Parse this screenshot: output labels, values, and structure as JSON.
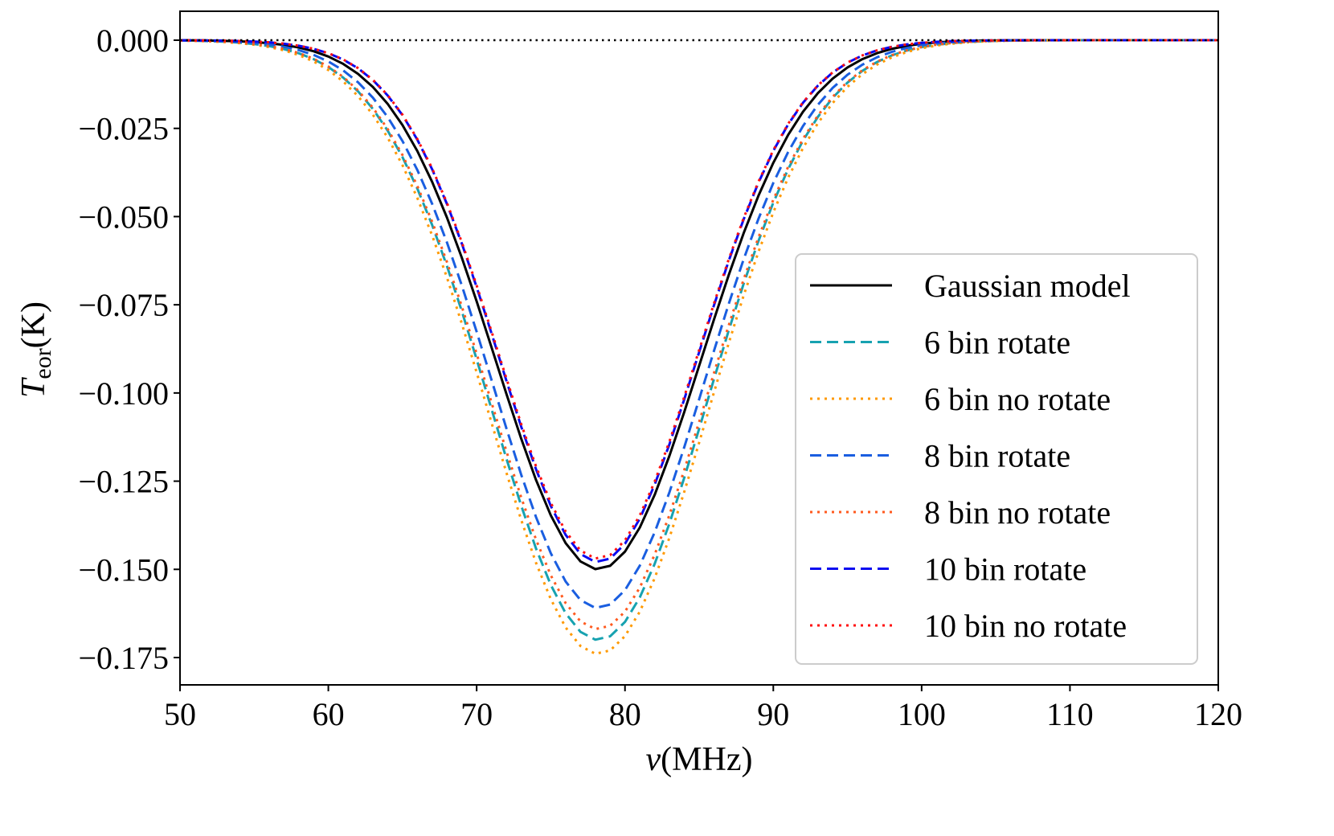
{
  "chart_data": {
    "type": "line",
    "title": "",
    "xlabel": "ν(MHz)",
    "ylabel_main": "T",
    "ylabel_sub": "eor",
    "ylabel_unit": "(K)",
    "xlim": [
      50,
      120
    ],
    "ylim": [
      -0.1825,
      0.0085
    ],
    "xticks": [
      50,
      60,
      70,
      80,
      90,
      100,
      110,
      120
    ],
    "xtick_labels": [
      "50",
      "60",
      "70",
      "80",
      "90",
      "100",
      "110",
      "120"
    ],
    "yticks": [
      0.0,
      -0.025,
      -0.05,
      -0.075,
      -0.1,
      -0.125,
      -0.15,
      -0.175
    ],
    "ytick_labels": [
      "0.000",
      "−0.025",
      "−0.050",
      "−0.075",
      "−0.100",
      "−0.125",
      "−0.150",
      "−0.175"
    ],
    "grid": false,
    "legend_position": "center-right",
    "reference_line": {
      "y": 0.0,
      "style": "dotted",
      "color": "#000000"
    },
    "x_sampling": {
      "start": 50,
      "stop": 120,
      "step": 1
    },
    "series": [
      {
        "name": "Gaussian model",
        "style": "solid",
        "color": "#000000",
        "center": 78.2,
        "amplitude": -0.15,
        "sigma": 6.9
      },
      {
        "name": "6 bin rotate",
        "style": "dashed",
        "color": "#17a2b0",
        "center": 78.2,
        "amplitude": -0.17,
        "sigma": 7.3
      },
      {
        "name": "6 bin no rotate",
        "style": "dotted",
        "color": "#ff9900",
        "center": 78.2,
        "amplitude": -0.174,
        "sigma": 7.4
      },
      {
        "name": "8 bin rotate",
        "style": "dashed",
        "color": "#1a5ee0",
        "center": 78.2,
        "amplitude": -0.161,
        "sigma": 7.1
      },
      {
        "name": "8 bin no rotate",
        "style": "dotted",
        "color": "#ff5a1f",
        "center": 78.2,
        "amplitude": -0.167,
        "sigma": 7.3
      },
      {
        "name": "10 bin rotate",
        "style": "dashed",
        "color": "#0a0af0",
        "center": 78.2,
        "amplitude": -0.148,
        "sigma": 6.7
      },
      {
        "name": "10 bin no rotate",
        "style": "dotted",
        "color": "#ff1010",
        "center": 78.2,
        "amplitude": -0.147,
        "sigma": 6.7
      }
    ]
  }
}
